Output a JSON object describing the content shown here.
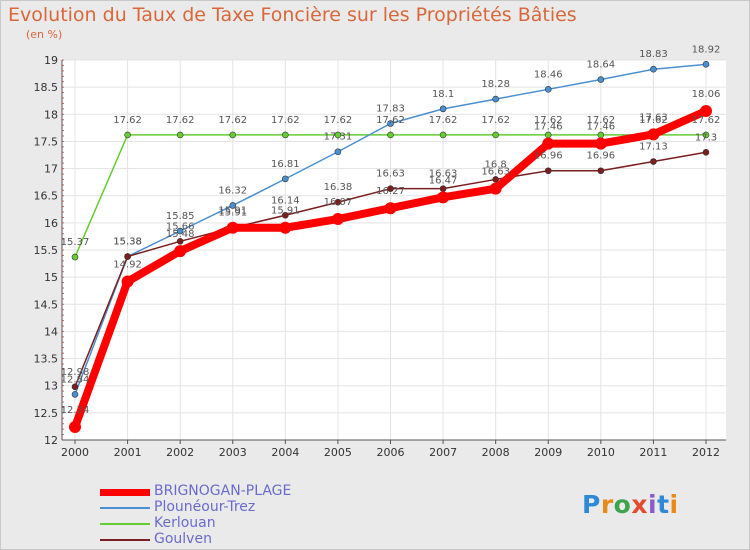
{
  "title": "Evolution du Taux de Taxe Foncière sur les Propriétés Bâties",
  "unit_label": "(en %)",
  "logo": {
    "text": "Proxiti",
    "letters": [
      "P",
      "r",
      "o",
      "x",
      "i",
      "t",
      "i"
    ],
    "colors": [
      "#2e8ad6",
      "#e88a1a",
      "#3fa34d",
      "#e34a2e",
      "#8a5cc8",
      "#2e8ad6",
      "#e88a1a"
    ]
  },
  "chart_data": {
    "type": "line",
    "x": [
      "2000",
      "2001",
      "2002",
      "2003",
      "2004",
      "2005",
      "2006",
      "2007",
      "2008",
      "2009",
      "2010",
      "2011",
      "2012"
    ],
    "ylim": [
      12,
      19
    ],
    "yticks": [
      "12",
      "12.5",
      "13",
      "13.5",
      "14",
      "14.5",
      "15",
      "15.5",
      "16",
      "16.5",
      "17",
      "17.5",
      "18",
      "18.5",
      "19"
    ],
    "series": [
      {
        "name": "BRIGNOGAN-PLAGE",
        "color": "#ff0000",
        "values": [
          12.24,
          14.92,
          15.48,
          15.91,
          15.91,
          16.07,
          16.27,
          16.47,
          16.63,
          17.46,
          17.46,
          17.63,
          18.06
        ],
        "labels": [
          "12.24",
          "14.92",
          "15.48",
          "15.91",
          "15.91",
          "16.07",
          "16.27",
          "16.47",
          "16.63",
          "17.46",
          "17.46",
          "17.63",
          "18.06"
        ]
      },
      {
        "name": "Plounéour-Trez",
        "color": "#4a8fd0",
        "values": [
          12.84,
          15.38,
          15.85,
          16.32,
          16.81,
          17.31,
          17.83,
          18.1,
          18.28,
          18.46,
          18.64,
          18.83,
          18.92
        ],
        "labels": [
          "12.84",
          "15.38",
          "15.85",
          "16.32",
          "16.81",
          "17.31",
          "17.83",
          "18.1",
          "18.28",
          "18.46",
          "18.64",
          "18.83",
          "18.92"
        ]
      },
      {
        "name": "Kerlouan",
        "color": "#66cc33",
        "values": [
          15.37,
          17.62,
          17.62,
          17.62,
          17.62,
          17.62,
          17.62,
          17.62,
          17.62,
          17.62,
          17.62,
          17.62,
          17.62
        ],
        "labels": [
          "15.37",
          "17.62",
          "17.62",
          "17.62",
          "17.62",
          "17.62",
          "17.62",
          "17.62",
          "17.62",
          "17.62",
          "17.62",
          "17.62",
          "17.62"
        ]
      },
      {
        "name": "Goulven",
        "color": "#7a1f1f",
        "values": [
          12.98,
          15.38,
          15.66,
          15.91,
          16.14,
          16.38,
          16.63,
          16.63,
          16.8,
          16.96,
          16.96,
          17.13,
          17.3
        ],
        "labels": [
          "12.98",
          "15.38",
          "15.66",
          "15.91",
          "16.14",
          "16.38",
          "16.63",
          "16.63",
          "16.8",
          "16.96",
          "16.96",
          "17.13",
          "17.3"
        ]
      }
    ]
  }
}
